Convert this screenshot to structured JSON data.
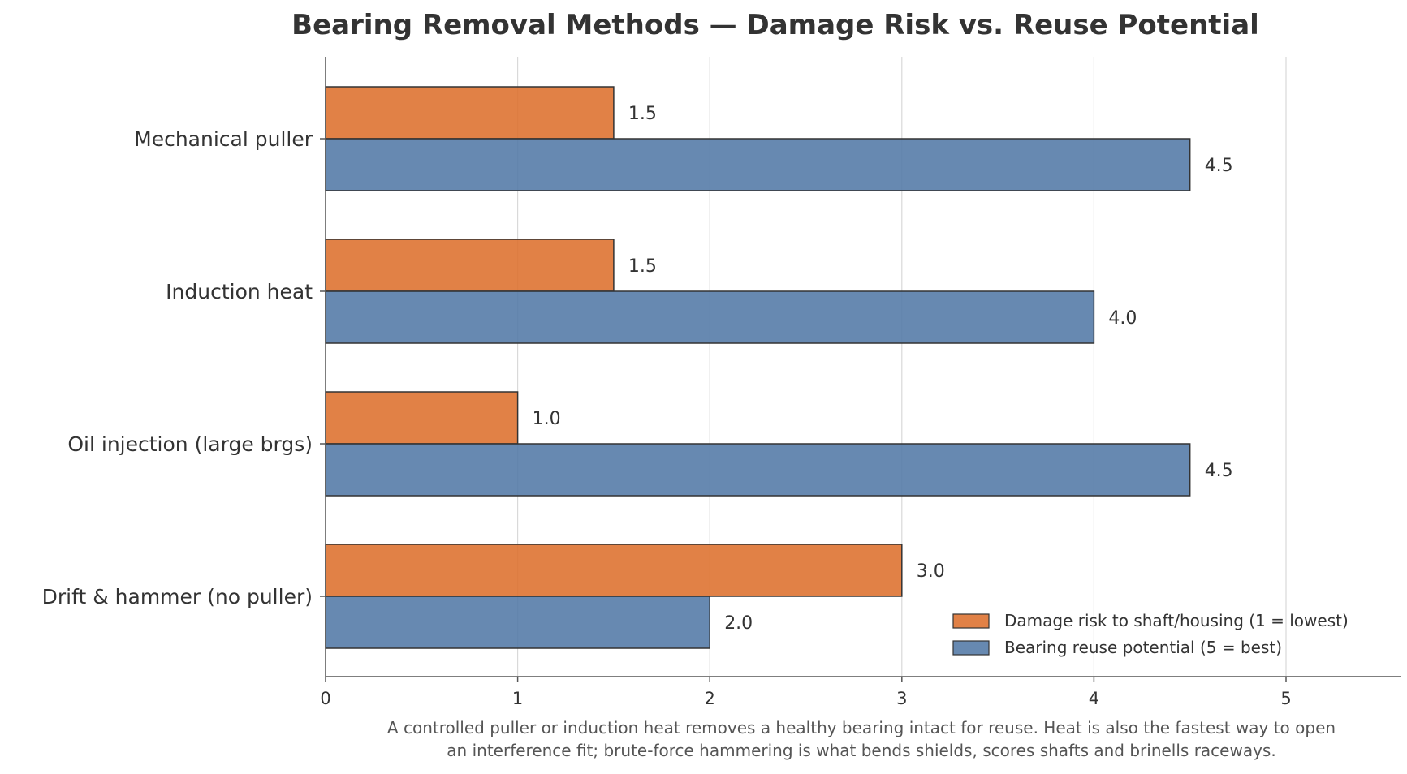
{
  "chart_data": {
    "type": "bar",
    "orientation": "horizontal",
    "title": "Bearing Removal Methods — Damage Risk vs. Reuse Potential",
    "categories": [
      "Mechanical puller",
      "Induction heat",
      "Oil injection (large brgs)",
      "Drift & hammer (no puller)"
    ],
    "series": [
      {
        "name": "Damage risk to shaft/housing (1 = lowest)",
        "color": "#DD6F2C",
        "values": [
          1.5,
          1.5,
          1.0,
          3.0
        ]
      },
      {
        "name": "Bearing reuse potential (5 = best)",
        "color": "#5279A6",
        "values": [
          4.5,
          4.0,
          4.5,
          2.0
        ]
      }
    ],
    "xlim": [
      0,
      5.6
    ],
    "xticks": [
      0,
      1,
      2,
      3,
      4,
      5
    ],
    "grid": "vertical",
    "legend_position": "bottom-right",
    "caption": [
      "A controlled puller or induction heat removes a healthy bearing intact for reuse. Heat is also the fastest way to open",
      "an interference fit; brute-force hammering is what bends shields, scores shafts and brinells raceways."
    ]
  }
}
